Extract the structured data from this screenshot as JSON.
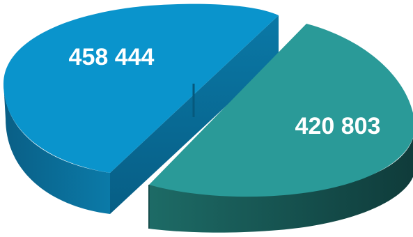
{
  "chart_data": {
    "type": "pie",
    "style": "3d-exploded",
    "slices": [
      {
        "value": 458444,
        "label": "458 444",
        "color": "#0a94cc"
      },
      {
        "value": 420803,
        "label": "420 803",
        "color": "#2a9a98"
      }
    ],
    "legend": "none",
    "title": ""
  }
}
